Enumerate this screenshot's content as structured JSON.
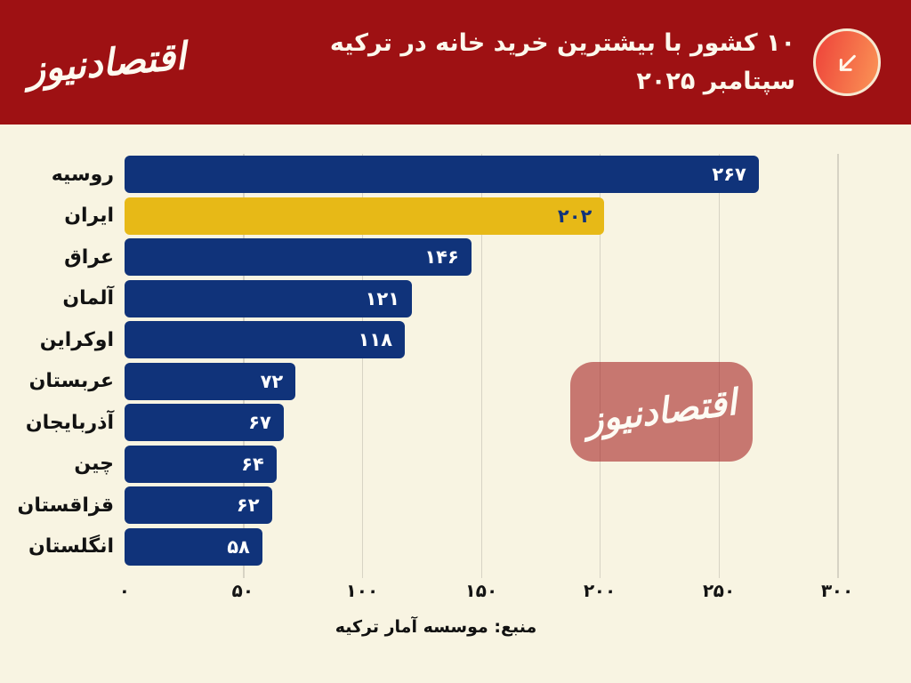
{
  "header": {
    "logo_text": "اقتصادنیوز",
    "title_line1": "۱۰ کشور با بیشترین خرید خانه در ترکیه",
    "title_line2": "سپتامبر ۲۰۲۵",
    "icon": "arrow-down-left-icon"
  },
  "watermark": {
    "text": "اقتصادنیوز"
  },
  "source": {
    "text": "منبع: موسسه آمار ترکیه"
  },
  "chart_data": {
    "type": "bar",
    "orientation": "horizontal",
    "title": "۱۰ کشور با بیشترین خرید خانه در ترکیه — سپتامبر ۲۰۲۵",
    "xlabel": "",
    "ylabel": "",
    "xlim": [
      0,
      300
    ],
    "grid": true,
    "highlight_category": "ایران",
    "categories": [
      "روسیه",
      "ایران",
      "عراق",
      "آلمان",
      "اوکراین",
      "عربستان",
      "آذربایجان",
      "چین",
      "قزاقستان",
      "انگلستان"
    ],
    "values": [
      267,
      202,
      146,
      121,
      118,
      72,
      67,
      64,
      62,
      58
    ],
    "rows": [
      {
        "label": "روسیه",
        "value": 267,
        "value_label": "۲۶۷",
        "highlight": false
      },
      {
        "label": "ایران",
        "value": 202,
        "value_label": "۲۰۲",
        "highlight": true
      },
      {
        "label": "عراق",
        "value": 146,
        "value_label": "۱۴۶",
        "highlight": false
      },
      {
        "label": "آلمان",
        "value": 121,
        "value_label": "۱۲۱",
        "highlight": false
      },
      {
        "label": "اوکراین",
        "value": 118,
        "value_label": "۱۱۸",
        "highlight": false
      },
      {
        "label": "عربستان",
        "value": 72,
        "value_label": "۷۲",
        "highlight": false
      },
      {
        "label": "آذربایجان",
        "value": 67,
        "value_label": "۶۷",
        "highlight": false
      },
      {
        "label": "چین",
        "value": 64,
        "value_label": "۶۴",
        "highlight": false
      },
      {
        "label": "قزاقستان",
        "value": 62,
        "value_label": "۶۲",
        "highlight": false
      },
      {
        "label": "انگلستان",
        "value": 58,
        "value_label": "۵۸",
        "highlight": false
      }
    ],
    "x_ticks": [
      {
        "value": 0,
        "label": "۰"
      },
      {
        "value": 50,
        "label": "۵۰"
      },
      {
        "value": 100,
        "label": "۱۰۰"
      },
      {
        "value": 150,
        "label": "۱۵۰"
      },
      {
        "value": 200,
        "label": "۲۰۰"
      },
      {
        "value": 250,
        "label": "۲۵۰"
      },
      {
        "value": 300,
        "label": "۳۰۰"
      }
    ],
    "source": "منبع: موسسه آمار ترکیه"
  },
  "colors": {
    "page_bg": "#F8F4E2",
    "header_bg": "#9E1113",
    "bar_color": "#10337A",
    "bar_highlight": "#E7B917",
    "grid_color": "#D7D3C4",
    "icon_grad_start": "#EF4A3C",
    "icon_grad_end": "#FA9155",
    "watermark_bg": "rgba(158,17,19,0.55)"
  }
}
